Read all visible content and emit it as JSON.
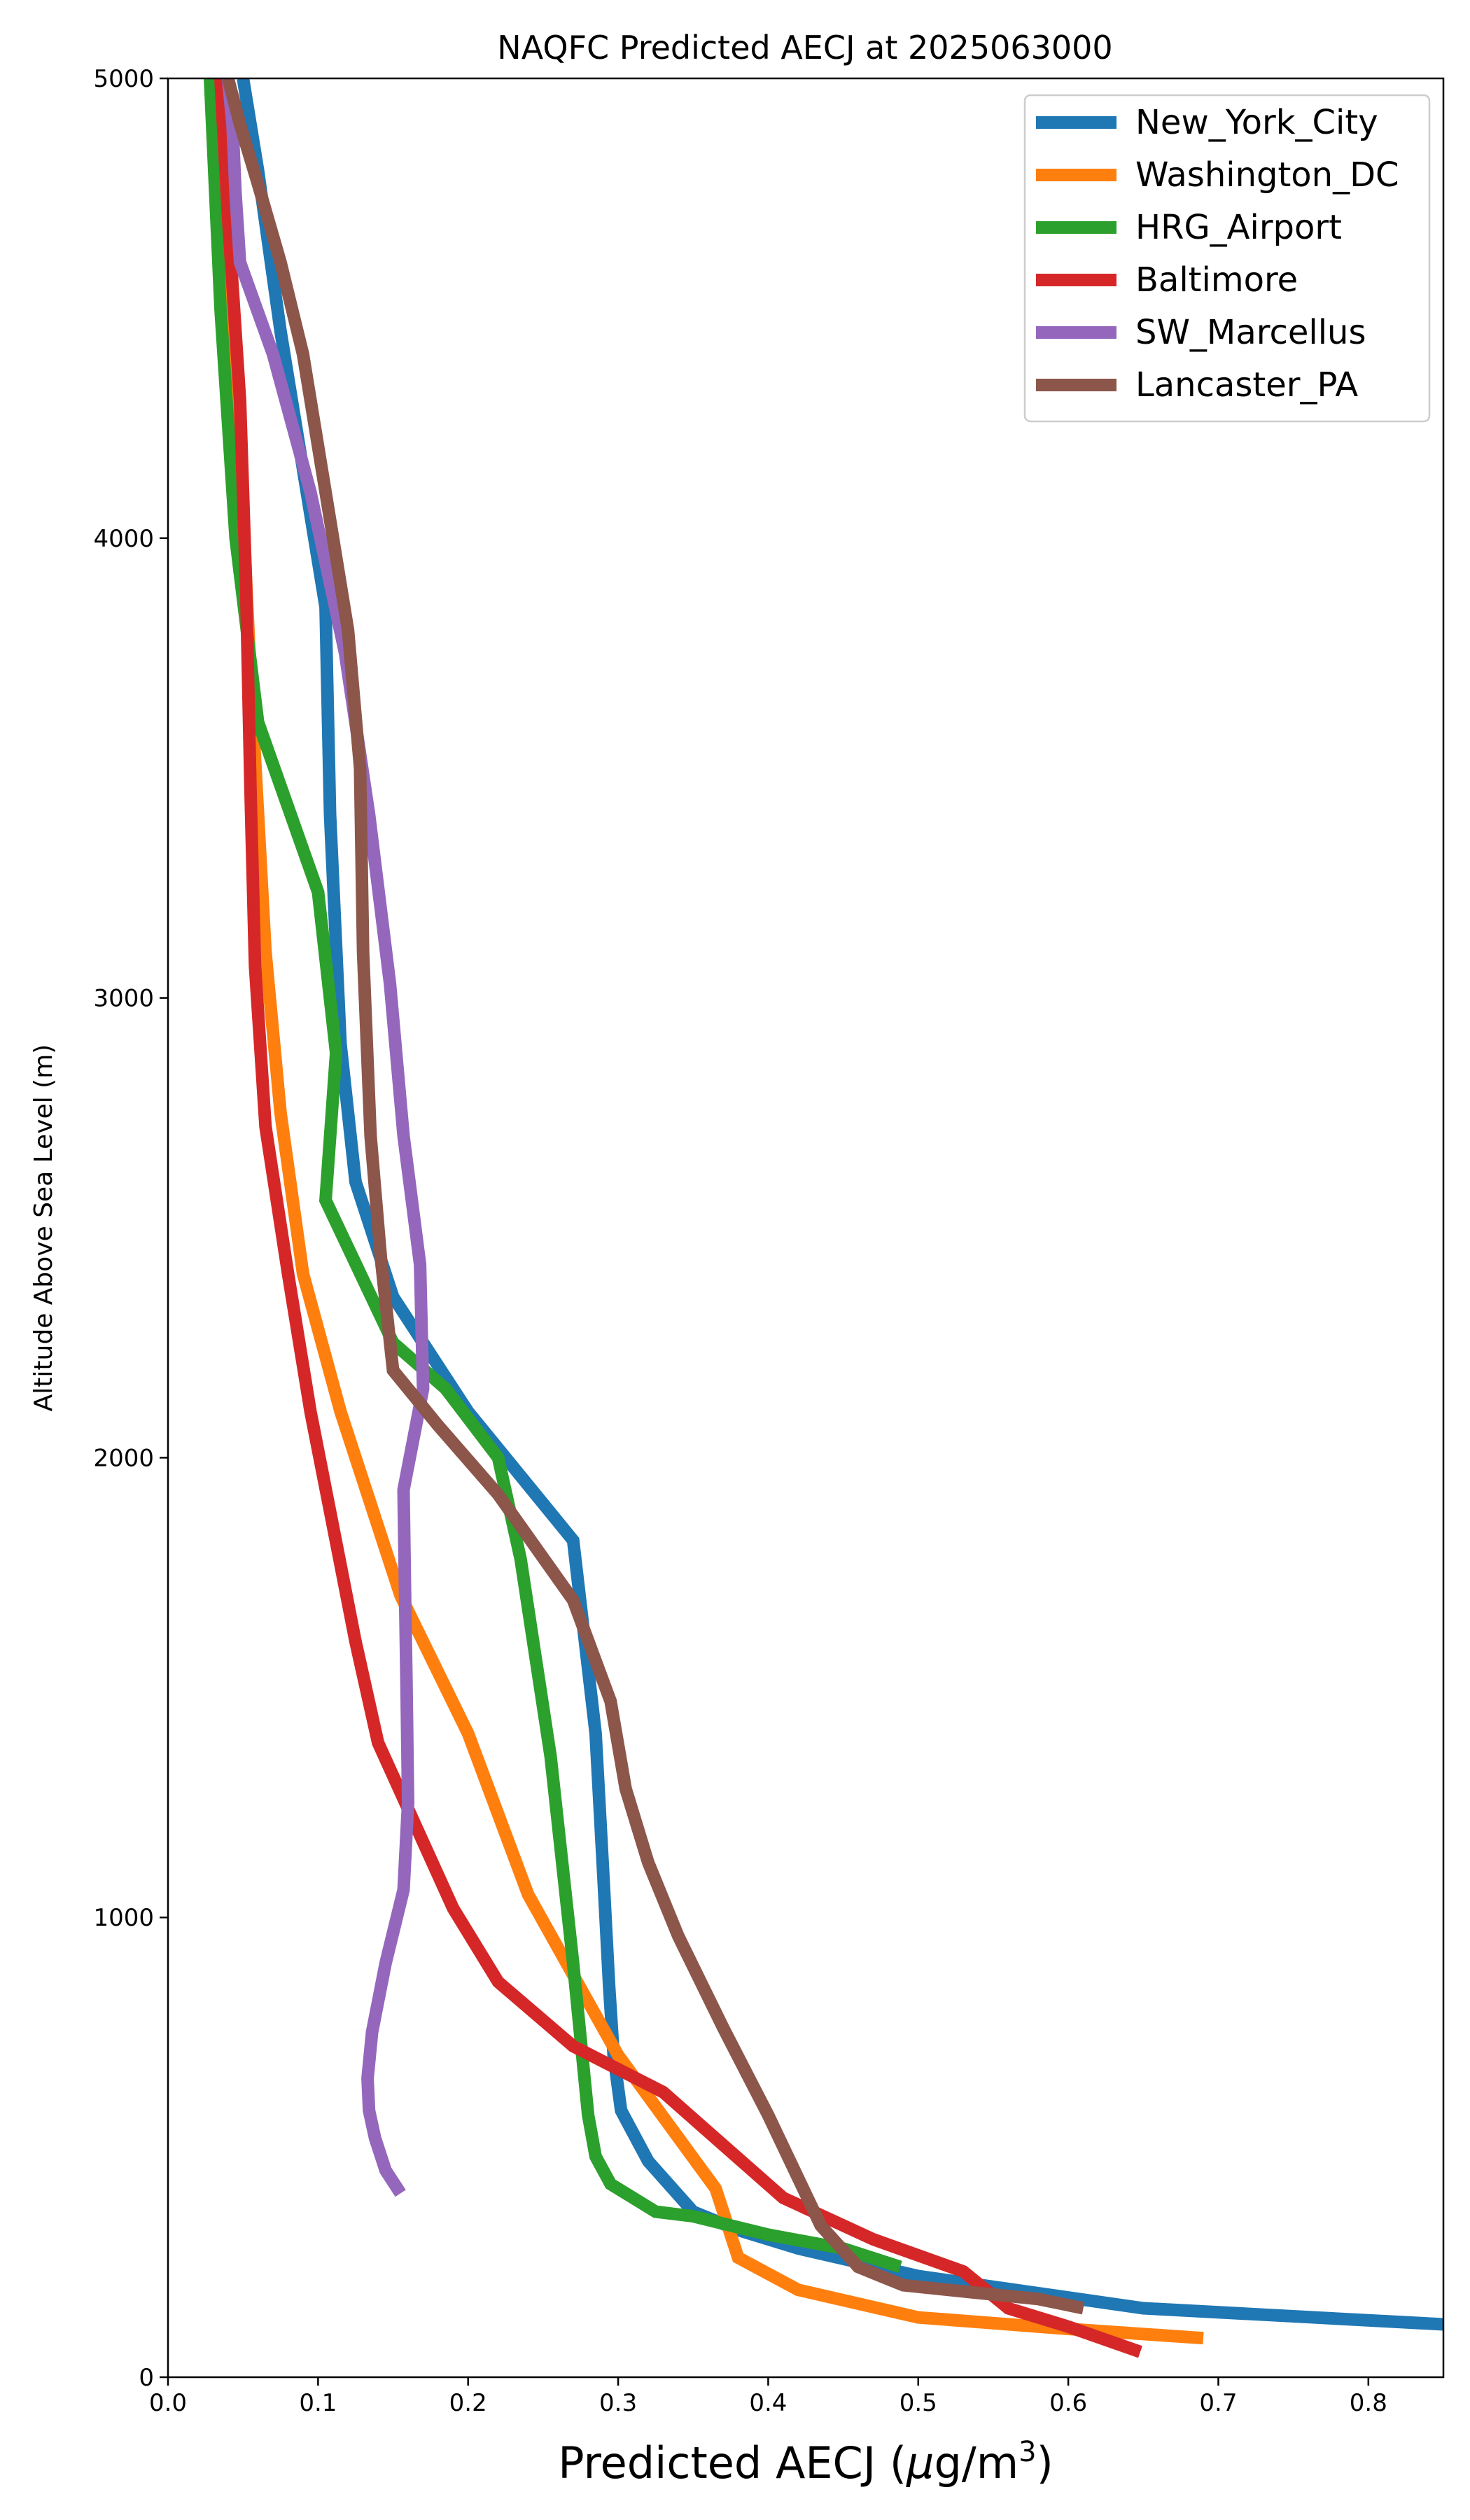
{
  "chart_data": {
    "type": "line",
    "title": "NAQFC Predicted AECJ at 2025063000",
    "xlabel_text": "Predicted AECJ (",
    "xlabel_mu": "μ",
    "xlabel_unit": "g/m",
    "xlabel_sup": "3",
    "xlabel_close": ")",
    "ylabel": "Altitude Above Sea Level (m)",
    "xlim": [
      0.0,
      0.85
    ],
    "ylim": [
      0,
      5000
    ],
    "xticks": [
      0.0,
      0.1,
      0.2,
      0.3,
      0.4,
      0.5,
      0.6,
      0.7,
      0.8
    ],
    "xtick_labels": [
      "0.0",
      "0.1",
      "0.2",
      "0.3",
      "0.4",
      "0.5",
      "0.6",
      "0.7",
      "0.8"
    ],
    "yticks": [
      0,
      1000,
      2000,
      3000,
      4000,
      5000
    ],
    "ytick_labels": [
      "0",
      "1000",
      "2000",
      "3000",
      "4000",
      "5000"
    ],
    "grid": false,
    "legend_position": "top-right",
    "series": [
      {
        "name": "New_York_City",
        "color": "#1f77b4",
        "x": [
          0.85,
          0.65,
          0.5,
          0.42,
          0.38,
          0.35,
          0.32,
          0.302,
          0.297,
          0.294,
          0.29,
          0.285,
          0.27,
          0.2,
          0.15,
          0.125,
          0.115,
          0.108,
          0.105,
          0.095,
          0.075,
          0.06,
          0.05
        ],
        "y": [
          115,
          150,
          220,
          280,
          320,
          360,
          470,
          580,
          700,
          850,
          1100,
          1400,
          1820,
          2100,
          2350,
          2600,
          2900,
          3400,
          3850,
          4050,
          4450,
          4800,
          5000
        ]
      },
      {
        "name": "Washington_DC",
        "color": "#ff7f0e",
        "x": [
          0.69,
          0.6,
          0.5,
          0.42,
          0.38,
          0.365,
          0.3,
          0.24,
          0.2,
          0.155,
          0.115,
          0.09,
          0.075,
          0.065,
          0.055,
          0.045,
          0.035
        ],
        "y": [
          85,
          105,
          130,
          190,
          260,
          410,
          700,
          1050,
          1400,
          1700,
          2100,
          2400,
          2750,
          3100,
          3700,
          4400,
          5000
        ]
      },
      {
        "name": "HRG_Airport",
        "color": "#2ca02c",
        "x": [
          0.488,
          0.45,
          0.4,
          0.35,
          0.325,
          0.295,
          0.285,
          0.28,
          0.27,
          0.255,
          0.235,
          0.22,
          0.185,
          0.15,
          0.105,
          0.112,
          0.1,
          0.06,
          0.045,
          0.035,
          0.028
        ],
        "y": [
          240,
          280,
          310,
          350,
          360,
          420,
          480,
          570,
          900,
          1350,
          1780,
          2000,
          2150,
          2250,
          2560,
          2880,
          3230,
          3600,
          4000,
          4500,
          5000
        ]
      },
      {
        "name": "Baltimore",
        "color": "#d62728",
        "x": [
          0.648,
          0.6,
          0.56,
          0.53,
          0.47,
          0.41,
          0.33,
          0.27,
          0.22,
          0.19,
          0.165,
          0.14,
          0.125,
          0.11,
          0.095,
          0.08,
          0.065,
          0.058,
          0.055,
          0.052,
          0.048,
          0.04,
          0.035
        ],
        "y": [
          55,
          110,
          150,
          230,
          300,
          390,
          620,
          720,
          860,
          1020,
          1200,
          1380,
          1600,
          1850,
          2100,
          2400,
          2720,
          3070,
          3450,
          3900,
          4300,
          4700,
          5000
        ]
      },
      {
        "name": "SW_Marcellus",
        "color": "#9467bd",
        "x": [
          0.155,
          0.145,
          0.138,
          0.134,
          0.133,
          0.136,
          0.145,
          0.157,
          0.16,
          0.159,
          0.158,
          0.157,
          0.17,
          0.168,
          0.157,
          0.148,
          0.134,
          0.118,
          0.095,
          0.07,
          0.048,
          0.045,
          0.043,
          0.04
        ],
        "y": [
          400,
          450,
          520,
          580,
          650,
          750,
          900,
          1060,
          1250,
          1500,
          1700,
          1930,
          2150,
          2420,
          2700,
          3030,
          3400,
          3750,
          4100,
          4400,
          4600,
          4750,
          4900,
          5000
        ]
      },
      {
        "name": "Lancaster_PA",
        "color": "#8c564b",
        "x": [
          0.61,
          0.58,
          0.55,
          0.49,
          0.46,
          0.435,
          0.4,
          0.37,
          0.34,
          0.32,
          0.305,
          0.295,
          0.27,
          0.22,
          0.18,
          0.15,
          0.142,
          0.135,
          0.13,
          0.128,
          0.12,
          0.105,
          0.09,
          0.075,
          0.06,
          0.048,
          0.04
        ],
        "y": [
          150,
          170,
          180,
          200,
          240,
          330,
          570,
          760,
          960,
          1120,
          1280,
          1470,
          1690,
          1920,
          2070,
          2190,
          2430,
          2700,
          3100,
          3500,
          3800,
          4100,
          4400,
          4600,
          4770,
          4900,
          5000
        ]
      }
    ]
  }
}
